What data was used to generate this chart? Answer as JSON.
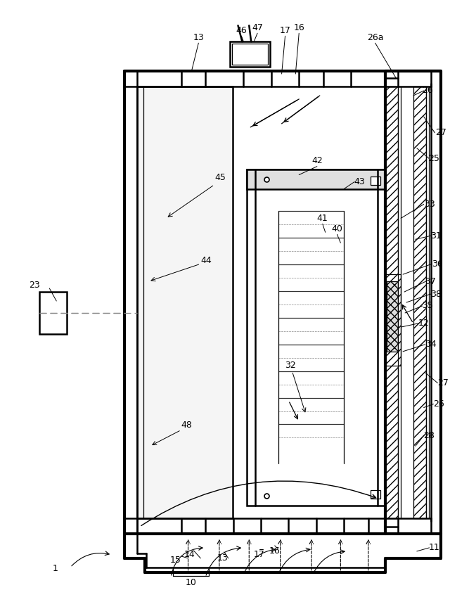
{
  "background_color": "#ffffff",
  "line_color": "#000000",
  "label_fontsize": 9,
  "fig_width": 6.4,
  "fig_height": 8.66
}
